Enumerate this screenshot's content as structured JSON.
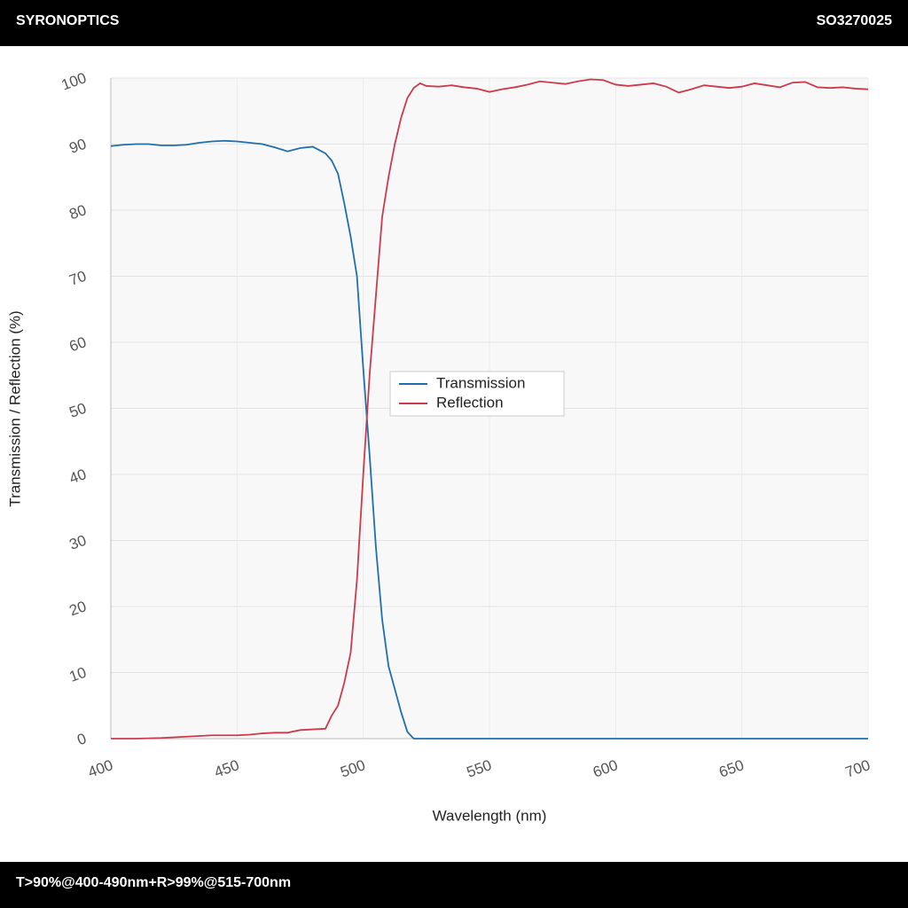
{
  "header": {
    "brand": "SYRONOPTICS",
    "code": "SO3270025"
  },
  "footer": {
    "text": "T>90%@400-490nm+R>99%@515-700nm"
  },
  "chart_data": {
    "type": "line",
    "xlabel": "Wavelength (nm)",
    "ylabel": "Transmission / Reflection (%)",
    "x": [
      400,
      405,
      410,
      415,
      420,
      425,
      430,
      435,
      440,
      445,
      450,
      455,
      460,
      465,
      470,
      475,
      480,
      485,
      487.5,
      490,
      492.5,
      495,
      497.5,
      500,
      502.5,
      505,
      507.5,
      510,
      512.5,
      515,
      517.5,
      520,
      522.5,
      525,
      530,
      535,
      540,
      545,
      550,
      555,
      560,
      565,
      570,
      575,
      580,
      585,
      590,
      595,
      600,
      605,
      610,
      615,
      620,
      625,
      630,
      635,
      640,
      645,
      650,
      655,
      660,
      665,
      670,
      675,
      680,
      685,
      690,
      695,
      700
    ],
    "series": [
      {
        "name": "Transmission",
        "color": "#1f6fad",
        "values": [
          89.7,
          89.9,
          90.0,
          90.0,
          89.8,
          89.8,
          89.9,
          90.2,
          90.4,
          90.5,
          90.4,
          90.2,
          90.0,
          89.5,
          88.9,
          89.4,
          89.6,
          88.6,
          87.5,
          85.5,
          81,
          76,
          70,
          56,
          43,
          29,
          18,
          11,
          7.5,
          4,
          1,
          0,
          0,
          0,
          0,
          0,
          0,
          0,
          0,
          0,
          0,
          0,
          0,
          0,
          0,
          0,
          0,
          0,
          0,
          0,
          0,
          0,
          0,
          0,
          0,
          0,
          0,
          0,
          0,
          0,
          0,
          0,
          0,
          0,
          0,
          0,
          0,
          0,
          0
        ]
      },
      {
        "name": "Reflection",
        "color": "#cc3a4c",
        "values": [
          0,
          0,
          0,
          0.05,
          0.1,
          0.2,
          0.3,
          0.4,
          0.5,
          0.5,
          0.5,
          0.6,
          0.8,
          0.9,
          0.9,
          1.3,
          1.4,
          1.5,
          3.5,
          5,
          8.5,
          13,
          24,
          40,
          55,
          67,
          79,
          85,
          90,
          94,
          97,
          98.5,
          99.2,
          98.8,
          98.7,
          98.9,
          98.6,
          98.4,
          97.9,
          98.3,
          98.6,
          99.0,
          99.5,
          99.3,
          99.1,
          99.5,
          99.8,
          99.7,
          99.0,
          98.8,
          99.0,
          99.2,
          98.7,
          97.8,
          98.3,
          98.9,
          98.7,
          98.5,
          98.7,
          99.2,
          98.9,
          98.6,
          99.3,
          99.4,
          98.6,
          98.5,
          98.6,
          98.4,
          98.3
        ]
      }
    ],
    "xlim": [
      400,
      700
    ],
    "xticks": [
      400,
      450,
      500,
      550,
      600,
      650,
      700
    ],
    "ylim": [
      0,
      100
    ],
    "yticks": [
      0,
      10,
      20,
      30,
      40,
      50,
      60,
      70,
      80,
      90,
      100
    ],
    "grid": true,
    "legend": "center"
  }
}
